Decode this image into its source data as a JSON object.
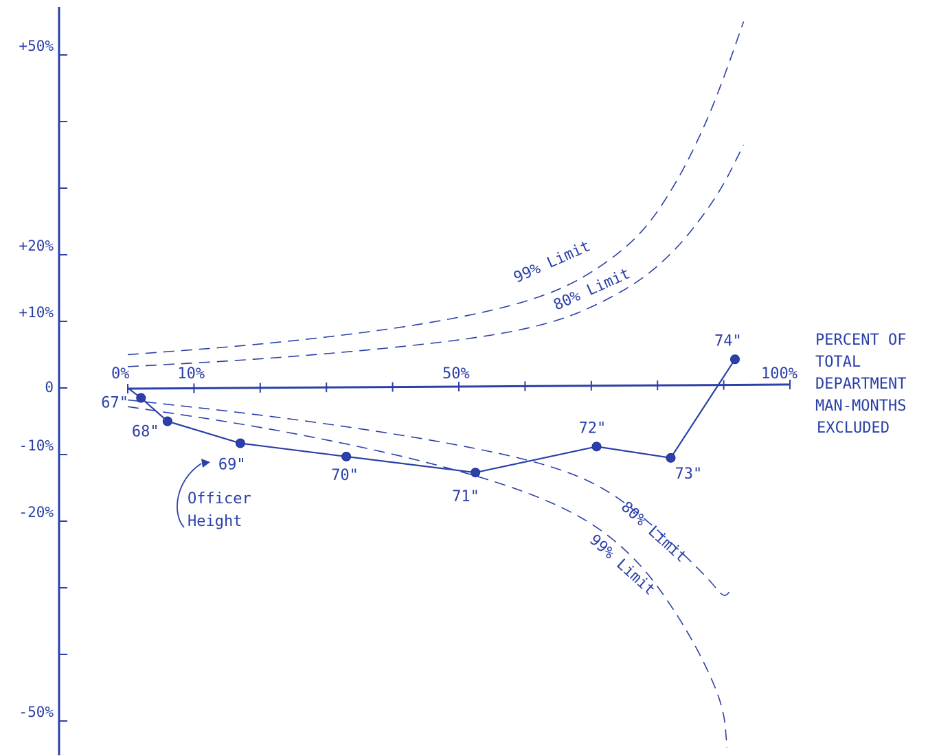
{
  "chart_data": {
    "type": "line",
    "title": "",
    "x_axis": {
      "range": [
        0,
        100
      ],
      "tick_values": [
        0,
        10,
        20,
        30,
        40,
        50,
        60,
        70,
        80,
        90,
        100
      ],
      "tick_labels": [
        {
          "x": 0,
          "text": "0%"
        },
        {
          "x": 10,
          "text": "10%"
        },
        {
          "x": 50,
          "text": "50%"
        },
        {
          "x": 100,
          "text": "100%"
        }
      ],
      "label_lines": [
        "PERCENT OF",
        "TOTAL",
        "DEPARTMENT",
        "MAN-MONTHS",
        "EXCLUDED"
      ]
    },
    "y_axis": {
      "range": [
        -50,
        50
      ],
      "tick_values": [
        -50,
        -40,
        -30,
        -20,
        -10,
        0,
        10,
        20,
        30,
        40,
        50
      ],
      "tick_labels": [
        {
          "y": 50,
          "text": "+50%"
        },
        {
          "y": 20,
          "text": "+20%"
        },
        {
          "y": 10,
          "text": "+10%"
        },
        {
          "y": 0,
          "text": "0"
        },
        {
          "y": -10,
          "text": "-10%"
        },
        {
          "y": -20,
          "text": "-20%"
        },
        {
          "y": -50,
          "text": "-50%"
        }
      ]
    },
    "series": [
      {
        "name": "Officer Height",
        "points": [
          {
            "x": 2,
            "y": -1.5,
            "label": "67\""
          },
          {
            "x": 6,
            "y": -5,
            "label": "68\""
          },
          {
            "x": 17,
            "y": -8.3,
            "label": "69\""
          },
          {
            "x": 33,
            "y": -10.3,
            "label": "70\""
          },
          {
            "x": 52.5,
            "y": -12.7,
            "label": "71\""
          },
          {
            "x": 70.8,
            "y": -8.8,
            "label": "72\""
          },
          {
            "x": 82,
            "y": -10.5,
            "label": "73\""
          },
          {
            "x": 91.7,
            "y": 4.3,
            "label": "74\""
          }
        ]
      }
    ],
    "limits": [
      {
        "name": "99% Limit",
        "side": "upper",
        "points": [
          [
            0,
            5
          ],
          [
            20,
            6.5
          ],
          [
            40,
            8.8
          ],
          [
            55,
            11.5
          ],
          [
            65,
            14.5
          ],
          [
            72,
            18.5
          ],
          [
            78,
            23.5
          ],
          [
            83,
            31
          ],
          [
            87,
            39
          ],
          [
            90,
            46.5
          ],
          [
            93,
            55
          ]
        ]
      },
      {
        "name": "80% Limit",
        "side": "upper",
        "points": [
          [
            0,
            3.2
          ],
          [
            20,
            4.3
          ],
          [
            40,
            6
          ],
          [
            55,
            7.8
          ],
          [
            65,
            10
          ],
          [
            72,
            13
          ],
          [
            78,
            16.5
          ],
          [
            83,
            21
          ],
          [
            87,
            26
          ],
          [
            90,
            30.5
          ],
          [
            93,
            36.5
          ]
        ]
      },
      {
        "name": "80% Limit",
        "side": "lower",
        "points": [
          [
            0,
            -1.8
          ],
          [
            20,
            -4
          ],
          [
            40,
            -6.8
          ],
          [
            55,
            -9.5
          ],
          [
            65,
            -12
          ],
          [
            72,
            -15
          ],
          [
            78,
            -19.5
          ],
          [
            84,
            -25
          ],
          [
            88,
            -29
          ],
          [
            90,
            -31.5
          ],
          [
            91,
            -30.5
          ]
        ]
      },
      {
        "name": "99% Limit",
        "side": "lower",
        "points": [
          [
            0,
            -2.8
          ],
          [
            20,
            -5.8
          ],
          [
            40,
            -9.8
          ],
          [
            55,
            -13.8
          ],
          [
            65,
            -17.5
          ],
          [
            72,
            -21.5
          ],
          [
            78,
            -27
          ],
          [
            83,
            -34
          ],
          [
            87,
            -41
          ],
          [
            90,
            -48
          ],
          [
            90.5,
            -54
          ]
        ]
      }
    ],
    "annotations": {
      "series_label_lines": [
        "Officer",
        "Height"
      ],
      "limit_labels": [
        "99% Limit",
        "80% Limit",
        "80% Limit",
        "99% Limit"
      ]
    },
    "grid": false,
    "legend": "none"
  }
}
